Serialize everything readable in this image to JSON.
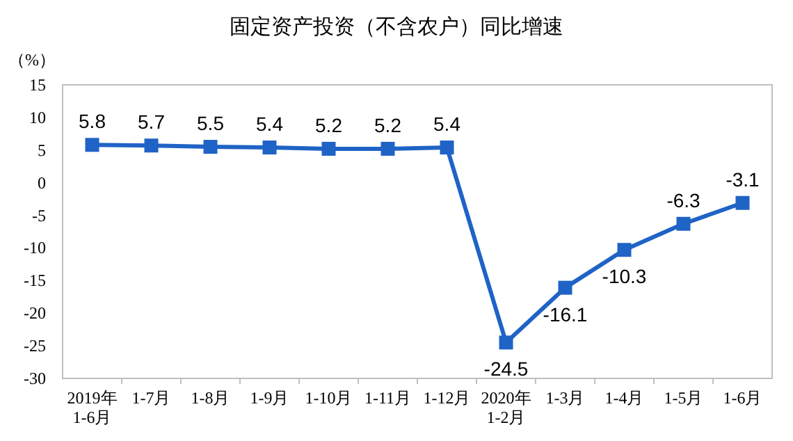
{
  "chart_data": {
    "type": "line",
    "title": "固定资产投资（不含农户）同比增速",
    "ylabel": "（%）",
    "categories": [
      "2019年\n1-6月",
      "1-7月",
      "1-8月",
      "1-9月",
      "1-10月",
      "1-11月",
      "1-12月",
      "2020年\n1-2月",
      "1-3月",
      "1-4月",
      "1-5月",
      "1-6月"
    ],
    "series": [
      {
        "color": "#1f63c6",
        "values": [
          5.8,
          5.7,
          5.5,
          5.4,
          5.2,
          5.2,
          5.4,
          -24.5,
          -16.1,
          -10.3,
          -6.3,
          -3.1
        ]
      }
    ],
    "ylim": [
      -30,
      15
    ],
    "yticks": [
      -30,
      -25,
      -20,
      -15,
      -10,
      -5,
      0,
      5,
      10,
      15
    ],
    "data_labels": true,
    "marker": "square",
    "line_style": "solid",
    "grid": false
  }
}
